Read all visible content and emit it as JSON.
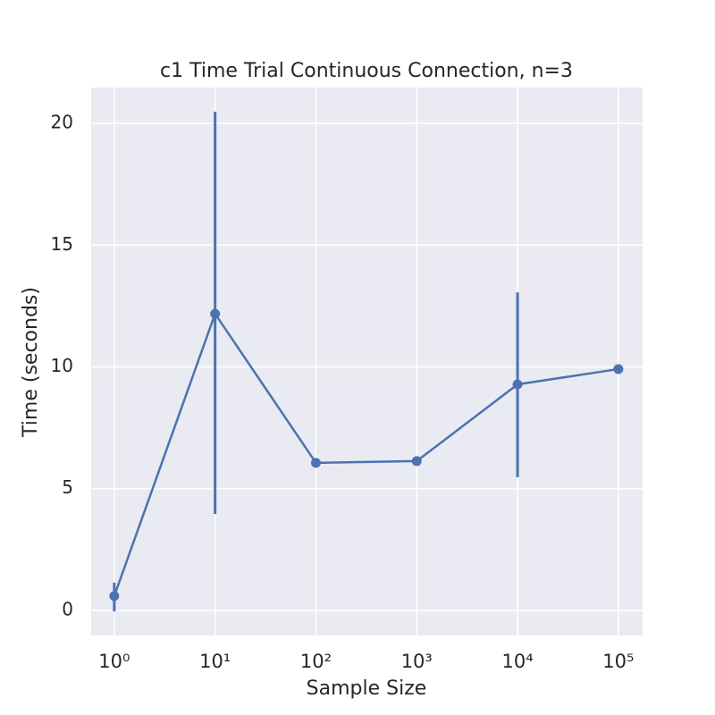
{
  "chart_data": {
    "type": "line",
    "title": "c1 Time Trial Continuous Connection, n=3",
    "x_label": "Sample Size",
    "y_label": "Time (seconds)",
    "x_scale": "log",
    "grid": true,
    "x": [
      1,
      10,
      100,
      1000,
      10000,
      100000
    ],
    "series": [
      {
        "name": "c1",
        "color": "#4c72b0",
        "values": [
          0.59,
          12.18,
          6.06,
          6.13,
          9.28,
          9.91
        ],
        "ci_low": [
          -0.04,
          3.96,
          null,
          null,
          5.47,
          null
        ],
        "ci_high": [
          1.14,
          20.48,
          null,
          null,
          13.06,
          null
        ]
      }
    ],
    "xlim": [
      0.59,
      174000
    ],
    "xticks": [
      {
        "value": 1,
        "label": "10⁰"
      },
      {
        "value": 10,
        "label": "10¹"
      },
      {
        "value": 100,
        "label": "10²"
      },
      {
        "value": 1000,
        "label": "10³"
      },
      {
        "value": 10000,
        "label": "10⁴"
      },
      {
        "value": 100000,
        "label": "10⁵"
      }
    ],
    "ylim": [
      -1.03,
      21.47
    ],
    "yticks": [
      0,
      5,
      10,
      15,
      20
    ]
  }
}
